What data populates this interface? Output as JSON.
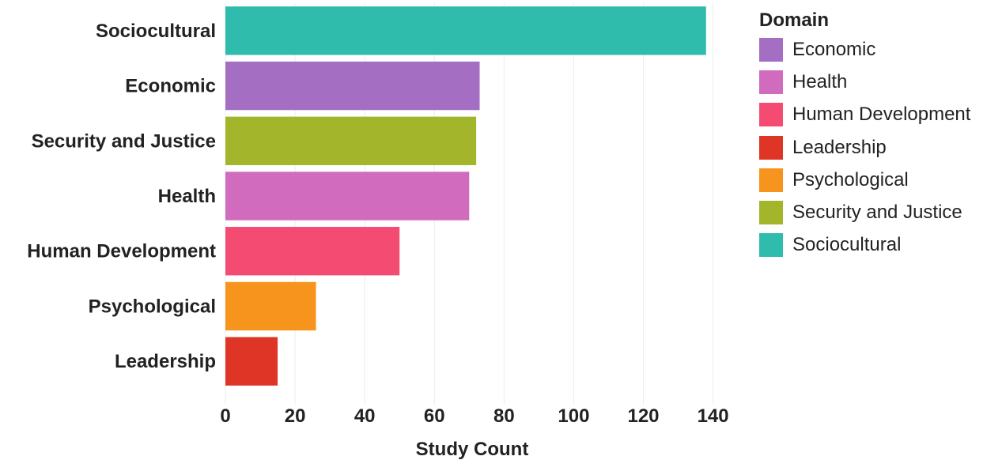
{
  "chart_data": {
    "type": "bar",
    "orientation": "horizontal",
    "categories": [
      "Sociocultural",
      "Economic",
      "Security and Justice",
      "Health",
      "Human Development",
      "Psychological",
      "Leadership"
    ],
    "values": [
      138,
      73,
      72,
      70,
      50,
      26,
      15
    ],
    "colors": [
      "#2fbcad",
      "#a46fc3",
      "#a3b52a",
      "#d06bbd",
      "#f34b72",
      "#f7941d",
      "#df3526"
    ],
    "xlabel": "Study Count",
    "ylabel": "",
    "xlim": [
      0,
      141
    ],
    "xticks": [
      0,
      20,
      40,
      60,
      80,
      100,
      120,
      140
    ],
    "grid": "vertical",
    "legend": {
      "title": "Domain",
      "placement": "right",
      "items": [
        {
          "label": "Economic",
          "color": "#a46fc3"
        },
        {
          "label": "Health",
          "color": "#d06bbd"
        },
        {
          "label": "Human Development",
          "color": "#f34b72"
        },
        {
          "label": "Leadership",
          "color": "#df3526"
        },
        {
          "label": "Psychological",
          "color": "#f7941d"
        },
        {
          "label": "Security and Justice",
          "color": "#a3b52a"
        },
        {
          "label": "Sociocultural",
          "color": "#2fbcad"
        }
      ]
    }
  }
}
